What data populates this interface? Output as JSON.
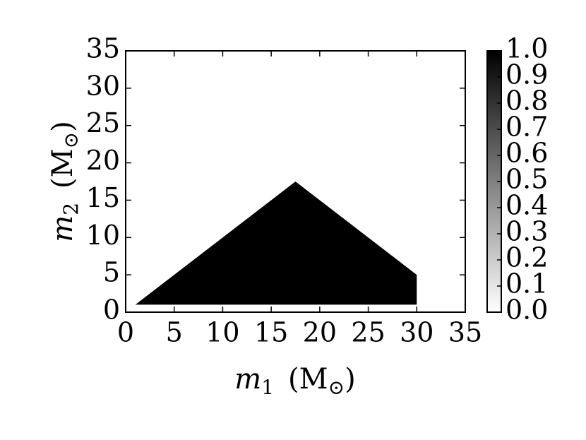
{
  "chart_data": {
    "type": "filled-region",
    "xlabel": {
      "var": "m",
      "sub": "1",
      "unit": "M",
      "unit_sub": "⊙"
    },
    "ylabel": {
      "var": "m",
      "sub": "2",
      "unit": "M",
      "unit_sub": "⊙"
    },
    "region": {
      "x": [
        1,
        17.5,
        30,
        30,
        1
      ],
      "y": [
        1,
        17.5,
        5,
        1,
        1
      ],
      "z": 1
    },
    "xlim": [
      0,
      35
    ],
    "ylim": [
      0,
      35
    ],
    "xticks": [
      0,
      5,
      10,
      15,
      20,
      25,
      30,
      35
    ],
    "yticks": [
      0,
      5,
      10,
      15,
      20,
      25,
      30,
      35
    ],
    "colorbar": {
      "lim": [
        0,
        1
      ],
      "colors": [
        "#ffffff",
        "#000000"
      ],
      "ticks": [
        {
          "value": 0,
          "label": "0.0"
        },
        0.1,
        0.2,
        0.3,
        0.4,
        0.5,
        0.6,
        0.7,
        0.8,
        0.9,
        {
          "value": 1,
          "label": "1.0"
        }
      ]
    }
  }
}
